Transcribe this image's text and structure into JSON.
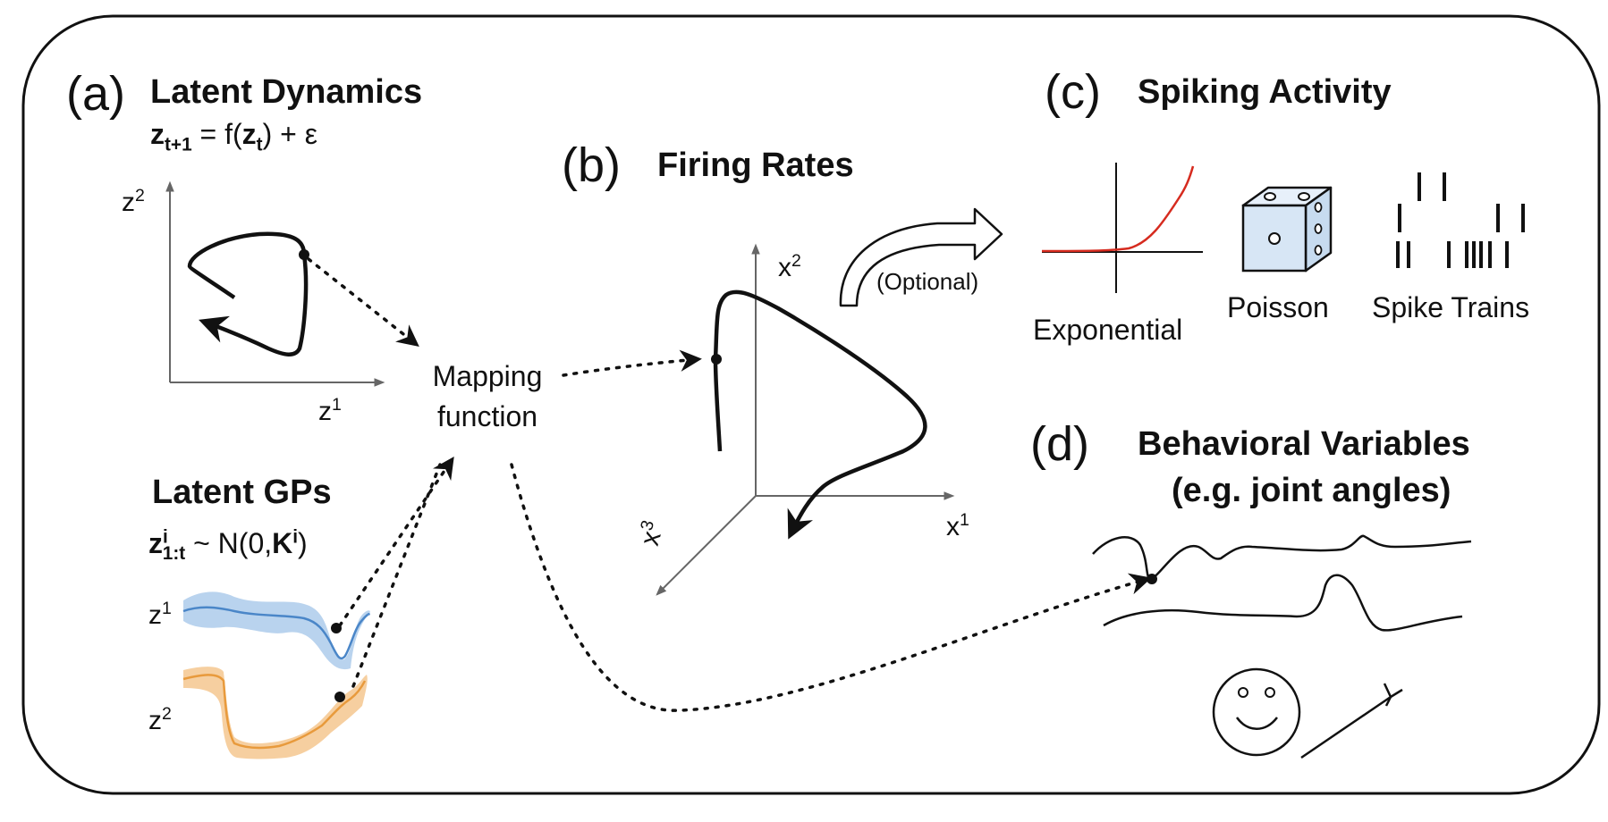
{
  "panels": {
    "a": {
      "letter": "(a)",
      "title": "Latent Dynamics",
      "equation": {
        "lhs": "z",
        "lhs_sub": "t+1",
        "mid": " = f(",
        "arg": "z",
        "arg_sub": "t",
        "rhs": ") + ε"
      },
      "axis_y": {
        "base": "z",
        "sup": "2"
      },
      "axis_x": {
        "base": "z",
        "sup": "1"
      },
      "gp_title": "Latent GPs",
      "gp_equation": {
        "base": "z",
        "sup": "i",
        "sub": "1:t",
        "mid": " ~ N(0,",
        "K": "K",
        "K_sup": "i",
        "end": ")"
      },
      "gp_label_1": {
        "base": "z",
        "sup": "1"
      },
      "gp_label_2": {
        "base": "z",
        "sup": "2"
      }
    },
    "mapping": {
      "line1": "Mapping",
      "line2": "function"
    },
    "b": {
      "letter": "(b)",
      "title": "Firing Rates",
      "axis_x1": {
        "base": "x",
        "sup": "1"
      },
      "axis_x2": {
        "base": "x",
        "sup": "2"
      },
      "axis_x3": {
        "base": "x",
        "sup": "3"
      },
      "optional": "(Optional)"
    },
    "c": {
      "letter": "(c)",
      "title": "Spiking Activity",
      "label_exp": "Exponential",
      "label_poisson": "Poisson",
      "label_spikes": "Spike Trains"
    },
    "d": {
      "letter": "(d)",
      "title_line1": "Behavioral Variables",
      "title_line2": "(e.g. joint angles)"
    }
  },
  "colors": {
    "frame": "#111111",
    "gp_blue": "#4a86c8",
    "gp_blue_fill": "#b9d3ee",
    "gp_orange": "#e89a3c",
    "gp_orange_fill": "#f6cfa0",
    "exp_curve": "#d62b1f",
    "die_fill": "#d7e6f5"
  }
}
